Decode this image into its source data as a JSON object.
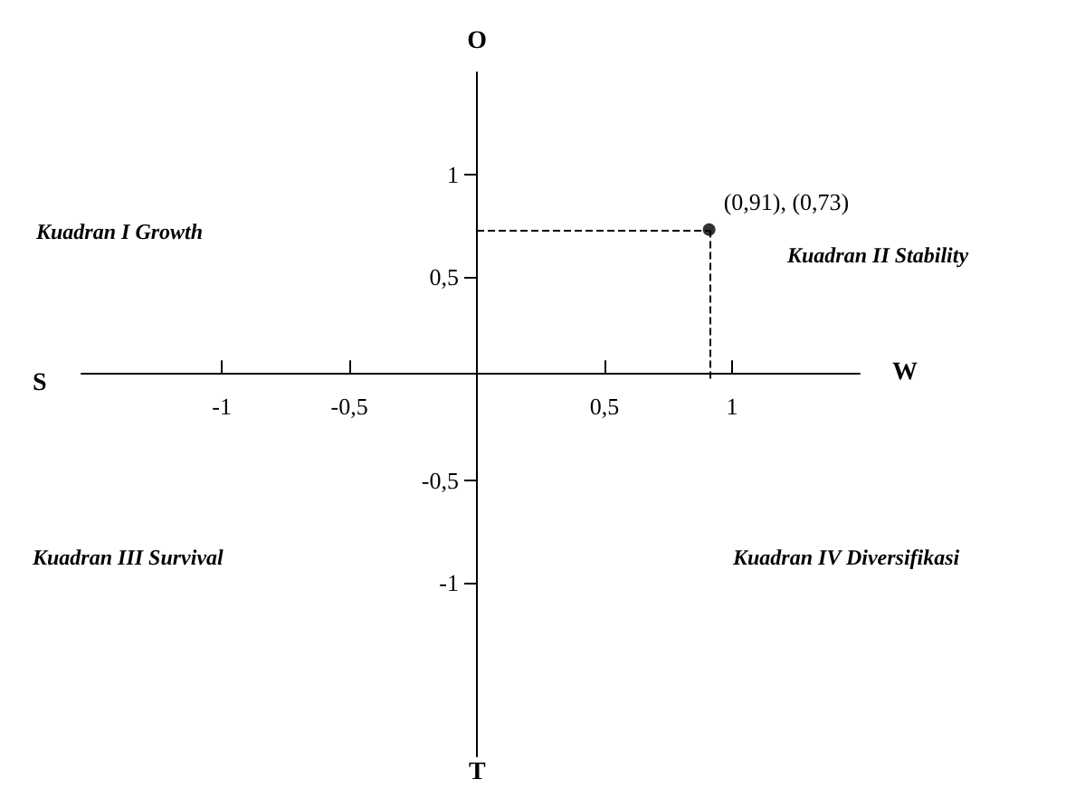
{
  "chart_data": {
    "type": "scatter",
    "xlabel": "W",
    "ylabel": "O",
    "x": [
      0.91
    ],
    "series": [
      {
        "color": "#000000",
        "values": [
          0.73
        ]
      }
    ],
    "xlim": [
      -1.55,
      1.5
    ],
    "ylim": [
      -1.85,
      1.5
    ],
    "xticks": [
      {
        "value": -1,
        "label": "-1"
      },
      {
        "value": -0.5,
        "label": "-0,5"
      },
      {
        "value": 0.5,
        "label": "0,5"
      },
      {
        "value": 1,
        "label": "1"
      }
    ],
    "yticks": [
      {
        "value": -1,
        "label": "-1"
      },
      {
        "value": -0.5,
        "label": "-0,5"
      },
      {
        "value": 0.5,
        "label": "0,5"
      },
      {
        "value": 1,
        "label": "1"
      }
    ],
    "grid": false,
    "marker": "circle",
    "ref_lines": [
      {
        "axis": "x",
        "value": 0.91,
        "line_style": "dashed"
      },
      {
        "axis": "y",
        "value": 0.73,
        "line_style": "dashed"
      }
    ],
    "annotations": [
      "S",
      "T",
      "Kuadran I Growth",
      "Kuadran II Stability",
      "Kuadran III Survival",
      "Kuadran IV Diversifikasi",
      {
        "text": "(0,91), (0,73)",
        "x": 0.91,
        "y": 0.73
      }
    ]
  }
}
